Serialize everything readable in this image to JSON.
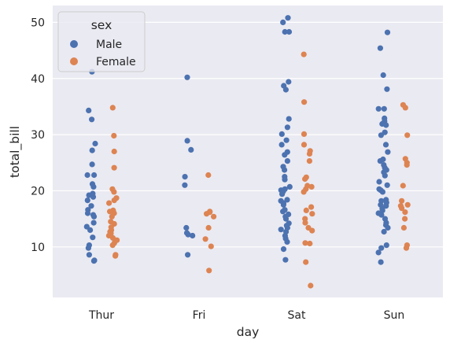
{
  "chart_data": {
    "type": "scatter",
    "style": "strip",
    "xlabel": "day",
    "ylabel": "total_bill",
    "categories": [
      "Thur",
      "Fri",
      "Sat",
      "Sun"
    ],
    "ylim": [
      1,
      53
    ],
    "yticks": [
      10,
      20,
      30,
      40,
      50
    ],
    "grid": true,
    "legend": {
      "title": "sex",
      "placement": "top-left",
      "entries": [
        {
          "name": "Male",
          "color": "#4c72b0"
        },
        {
          "name": "Female",
          "color": "#dd8452"
        }
      ]
    },
    "series": [
      {
        "name": "Male",
        "color": "#4c72b0",
        "points": [
          {
            "day": "Thur",
            "total_bill": 41.2
          },
          {
            "day": "Thur",
            "total_bill": 34.3
          },
          {
            "day": "Thur",
            "total_bill": 32.7
          },
          {
            "day": "Thur",
            "total_bill": 28.4
          },
          {
            "day": "Thur",
            "total_bill": 27.2
          },
          {
            "day": "Thur",
            "total_bill": 24.7
          },
          {
            "day": "Thur",
            "total_bill": 22.8
          },
          {
            "day": "Thur",
            "total_bill": 22.8
          },
          {
            "day": "Thur",
            "total_bill": 21.2
          },
          {
            "day": "Thur",
            "total_bill": 20.7
          },
          {
            "day": "Thur",
            "total_bill": 19.5
          },
          {
            "day": "Thur",
            "total_bill": 19.2
          },
          {
            "day": "Thur",
            "total_bill": 18.9
          },
          {
            "day": "Thur",
            "total_bill": 18.3
          },
          {
            "day": "Thur",
            "total_bill": 17.3
          },
          {
            "day": "Thur",
            "total_bill": 16.6
          },
          {
            "day": "Thur",
            "total_bill": 16.0
          },
          {
            "day": "Thur",
            "total_bill": 15.7
          },
          {
            "day": "Thur",
            "total_bill": 15.4
          },
          {
            "day": "Thur",
            "total_bill": 14.3
          },
          {
            "day": "Thur",
            "total_bill": 13.6
          },
          {
            "day": "Thur",
            "total_bill": 13.0
          },
          {
            "day": "Thur",
            "total_bill": 11.7
          },
          {
            "day": "Thur",
            "total_bill": 10.3
          },
          {
            "day": "Thur",
            "total_bill": 9.8
          },
          {
            "day": "Thur",
            "total_bill": 8.6
          },
          {
            "day": "Thur",
            "total_bill": 7.6
          },
          {
            "day": "Thur",
            "total_bill": 7.5
          },
          {
            "day": "Fri",
            "total_bill": 40.2
          },
          {
            "day": "Fri",
            "total_bill": 28.9
          },
          {
            "day": "Fri",
            "total_bill": 27.3
          },
          {
            "day": "Fri",
            "total_bill": 22.5
          },
          {
            "day": "Fri",
            "total_bill": 21.0
          },
          {
            "day": "Fri",
            "total_bill": 13.4
          },
          {
            "day": "Fri",
            "total_bill": 12.5
          },
          {
            "day": "Fri",
            "total_bill": 12.2
          },
          {
            "day": "Fri",
            "total_bill": 12.0
          },
          {
            "day": "Fri",
            "total_bill": 8.6
          },
          {
            "day": "Sat",
            "total_bill": 50.8
          },
          {
            "day": "Sat",
            "total_bill": 50.0
          },
          {
            "day": "Sat",
            "total_bill": 48.3
          },
          {
            "day": "Sat",
            "total_bill": 48.3
          },
          {
            "day": "Sat",
            "total_bill": 39.4
          },
          {
            "day": "Sat",
            "total_bill": 38.7
          },
          {
            "day": "Sat",
            "total_bill": 38.0
          },
          {
            "day": "Sat",
            "total_bill": 32.8
          },
          {
            "day": "Sat",
            "total_bill": 31.3
          },
          {
            "day": "Sat",
            "total_bill": 30.1
          },
          {
            "day": "Sat",
            "total_bill": 29.0
          },
          {
            "day": "Sat",
            "total_bill": 28.2
          },
          {
            "day": "Sat",
            "total_bill": 26.9
          },
          {
            "day": "Sat",
            "total_bill": 26.4
          },
          {
            "day": "Sat",
            "total_bill": 25.3
          },
          {
            "day": "Sat",
            "total_bill": 24.3
          },
          {
            "day": "Sat",
            "total_bill": 23.7
          },
          {
            "day": "Sat",
            "total_bill": 22.5
          },
          {
            "day": "Sat",
            "total_bill": 22.0
          },
          {
            "day": "Sat",
            "total_bill": 20.7
          },
          {
            "day": "Sat",
            "total_bill": 20.3
          },
          {
            "day": "Sat",
            "total_bill": 20.1
          },
          {
            "day": "Sat",
            "total_bill": 19.9
          },
          {
            "day": "Sat",
            "total_bill": 19.4
          },
          {
            "day": "Sat",
            "total_bill": 18.4
          },
          {
            "day": "Sat",
            "total_bill": 18.2
          },
          {
            "day": "Sat",
            "total_bill": 17.8
          },
          {
            "day": "Sat",
            "total_bill": 17.5
          },
          {
            "day": "Sat",
            "total_bill": 16.6
          },
          {
            "day": "Sat",
            "total_bill": 16.3
          },
          {
            "day": "Sat",
            "total_bill": 15.8
          },
          {
            "day": "Sat",
            "total_bill": 15.4
          },
          {
            "day": "Sat",
            "total_bill": 15.0
          },
          {
            "day": "Sat",
            "total_bill": 14.2
          },
          {
            "day": "Sat",
            "total_bill": 13.8
          },
          {
            "day": "Sat",
            "total_bill": 13.4
          },
          {
            "day": "Sat",
            "total_bill": 13.1
          },
          {
            "day": "Sat",
            "total_bill": 12.7
          },
          {
            "day": "Sat",
            "total_bill": 12.0
          },
          {
            "day": "Sat",
            "total_bill": 11.5
          },
          {
            "day": "Sat",
            "total_bill": 10.9
          },
          {
            "day": "Sat",
            "total_bill": 9.6
          },
          {
            "day": "Sat",
            "total_bill": 7.7
          },
          {
            "day": "Sun",
            "total_bill": 48.2
          },
          {
            "day": "Sun",
            "total_bill": 45.4
          },
          {
            "day": "Sun",
            "total_bill": 40.6
          },
          {
            "day": "Sun",
            "total_bill": 38.1
          },
          {
            "day": "Sun",
            "total_bill": 34.6
          },
          {
            "day": "Sun",
            "total_bill": 34.6
          },
          {
            "day": "Sun",
            "total_bill": 32.9
          },
          {
            "day": "Sun",
            "total_bill": 32.4
          },
          {
            "day": "Sun",
            "total_bill": 31.9
          },
          {
            "day": "Sun",
            "total_bill": 31.7
          },
          {
            "day": "Sun",
            "total_bill": 30.4
          },
          {
            "day": "Sun",
            "total_bill": 29.9
          },
          {
            "day": "Sun",
            "total_bill": 28.2
          },
          {
            "day": "Sun",
            "total_bill": 26.9
          },
          {
            "day": "Sun",
            "total_bill": 25.6
          },
          {
            "day": "Sun",
            "total_bill": 25.3
          },
          {
            "day": "Sun",
            "total_bill": 24.6
          },
          {
            "day": "Sun",
            "total_bill": 24.1
          },
          {
            "day": "Sun",
            "total_bill": 23.7
          },
          {
            "day": "Sun",
            "total_bill": 23.3
          },
          {
            "day": "Sun",
            "total_bill": 22.7
          },
          {
            "day": "Sun",
            "total_bill": 21.6
          },
          {
            "day": "Sun",
            "total_bill": 21.0
          },
          {
            "day": "Sun",
            "total_bill": 20.3
          },
          {
            "day": "Sun",
            "total_bill": 20.1
          },
          {
            "day": "Sun",
            "total_bill": 19.8
          },
          {
            "day": "Sun",
            "total_bill": 18.4
          },
          {
            "day": "Sun",
            "total_bill": 18.2
          },
          {
            "day": "Sun",
            "total_bill": 17.9
          },
          {
            "day": "Sun",
            "total_bill": 17.5
          },
          {
            "day": "Sun",
            "total_bill": 17.3
          },
          {
            "day": "Sun",
            "total_bill": 16.8
          },
          {
            "day": "Sun",
            "total_bill": 16.5
          },
          {
            "day": "Sun",
            "total_bill": 16.0
          },
          {
            "day": "Sun",
            "total_bill": 15.7
          },
          {
            "day": "Sun",
            "total_bill": 15.0
          },
          {
            "day": "Sun",
            "total_bill": 14.3
          },
          {
            "day": "Sun",
            "total_bill": 13.9
          },
          {
            "day": "Sun",
            "total_bill": 13.4
          },
          {
            "day": "Sun",
            "total_bill": 12.7
          },
          {
            "day": "Sun",
            "total_bill": 10.3
          },
          {
            "day": "Sun",
            "total_bill": 9.8
          },
          {
            "day": "Sun",
            "total_bill": 9.0
          },
          {
            "day": "Sun",
            "total_bill": 7.3
          }
        ]
      },
      {
        "name": "Female",
        "color": "#dd8452",
        "points": [
          {
            "day": "Thur",
            "total_bill": 34.8
          },
          {
            "day": "Thur",
            "total_bill": 29.8
          },
          {
            "day": "Thur",
            "total_bill": 27.0
          },
          {
            "day": "Thur",
            "total_bill": 24.1
          },
          {
            "day": "Thur",
            "total_bill": 20.3
          },
          {
            "day": "Thur",
            "total_bill": 19.8
          },
          {
            "day": "Thur",
            "total_bill": 18.7
          },
          {
            "day": "Thur",
            "total_bill": 18.3
          },
          {
            "day": "Thur",
            "total_bill": 17.8
          },
          {
            "day": "Thur",
            "total_bill": 16.5
          },
          {
            "day": "Thur",
            "total_bill": 16.3
          },
          {
            "day": "Thur",
            "total_bill": 16.0
          },
          {
            "day": "Thur",
            "total_bill": 15.4
          },
          {
            "day": "Thur",
            "total_bill": 14.5
          },
          {
            "day": "Thur",
            "total_bill": 14.1
          },
          {
            "day": "Thur",
            "total_bill": 13.5
          },
          {
            "day": "Thur",
            "total_bill": 13.0
          },
          {
            "day": "Thur",
            "total_bill": 12.7
          },
          {
            "day": "Thur",
            "total_bill": 12.4
          },
          {
            "day": "Thur",
            "total_bill": 12.0
          },
          {
            "day": "Thur",
            "total_bill": 11.6
          },
          {
            "day": "Thur",
            "total_bill": 11.2
          },
          {
            "day": "Thur",
            "total_bill": 10.7
          },
          {
            "day": "Thur",
            "total_bill": 10.3
          },
          {
            "day": "Thur",
            "total_bill": 8.6
          },
          {
            "day": "Thur",
            "total_bill": 8.4
          },
          {
            "day": "Fri",
            "total_bill": 22.8
          },
          {
            "day": "Fri",
            "total_bill": 16.3
          },
          {
            "day": "Fri",
            "total_bill": 16.2
          },
          {
            "day": "Fri",
            "total_bill": 15.9
          },
          {
            "day": "Fri",
            "total_bill": 15.4
          },
          {
            "day": "Fri",
            "total_bill": 13.4
          },
          {
            "day": "Fri",
            "total_bill": 11.4
          },
          {
            "day": "Fri",
            "total_bill": 10.1
          },
          {
            "day": "Fri",
            "total_bill": 5.8
          },
          {
            "day": "Sat",
            "total_bill": 44.3
          },
          {
            "day": "Sat",
            "total_bill": 35.8
          },
          {
            "day": "Sat",
            "total_bill": 30.1
          },
          {
            "day": "Sat",
            "total_bill": 28.2
          },
          {
            "day": "Sat",
            "total_bill": 27.1
          },
          {
            "day": "Sat",
            "total_bill": 26.6
          },
          {
            "day": "Sat",
            "total_bill": 25.3
          },
          {
            "day": "Sat",
            "total_bill": 22.4
          },
          {
            "day": "Sat",
            "total_bill": 22.1
          },
          {
            "day": "Sat",
            "total_bill": 20.9
          },
          {
            "day": "Sat",
            "total_bill": 20.7
          },
          {
            "day": "Sat",
            "total_bill": 20.3
          },
          {
            "day": "Sat",
            "total_bill": 19.8
          },
          {
            "day": "Sat",
            "total_bill": 17.1
          },
          {
            "day": "Sat",
            "total_bill": 16.5
          },
          {
            "day": "Sat",
            "total_bill": 15.9
          },
          {
            "day": "Sat",
            "total_bill": 15.0
          },
          {
            "day": "Sat",
            "total_bill": 14.3
          },
          {
            "day": "Sat",
            "total_bill": 13.4
          },
          {
            "day": "Sat",
            "total_bill": 12.9
          },
          {
            "day": "Sat",
            "total_bill": 10.7
          },
          {
            "day": "Sat",
            "total_bill": 10.6
          },
          {
            "day": "Sat",
            "total_bill": 7.3
          },
          {
            "day": "Sat",
            "total_bill": 3.1
          },
          {
            "day": "Sun",
            "total_bill": 35.3
          },
          {
            "day": "Sun",
            "total_bill": 34.8
          },
          {
            "day": "Sun",
            "total_bill": 29.9
          },
          {
            "day": "Sun",
            "total_bill": 25.7
          },
          {
            "day": "Sun",
            "total_bill": 25.0
          },
          {
            "day": "Sun",
            "total_bill": 24.6
          },
          {
            "day": "Sun",
            "total_bill": 20.9
          },
          {
            "day": "Sun",
            "total_bill": 18.2
          },
          {
            "day": "Sun",
            "total_bill": 17.5
          },
          {
            "day": "Sun",
            "total_bill": 17.3
          },
          {
            "day": "Sun",
            "total_bill": 16.9
          },
          {
            "day": "Sun",
            "total_bill": 16.2
          },
          {
            "day": "Sun",
            "total_bill": 15.0
          },
          {
            "day": "Sun",
            "total_bill": 13.4
          },
          {
            "day": "Sun",
            "total_bill": 10.3
          },
          {
            "day": "Sun",
            "total_bill": 9.8
          }
        ]
      }
    ]
  }
}
